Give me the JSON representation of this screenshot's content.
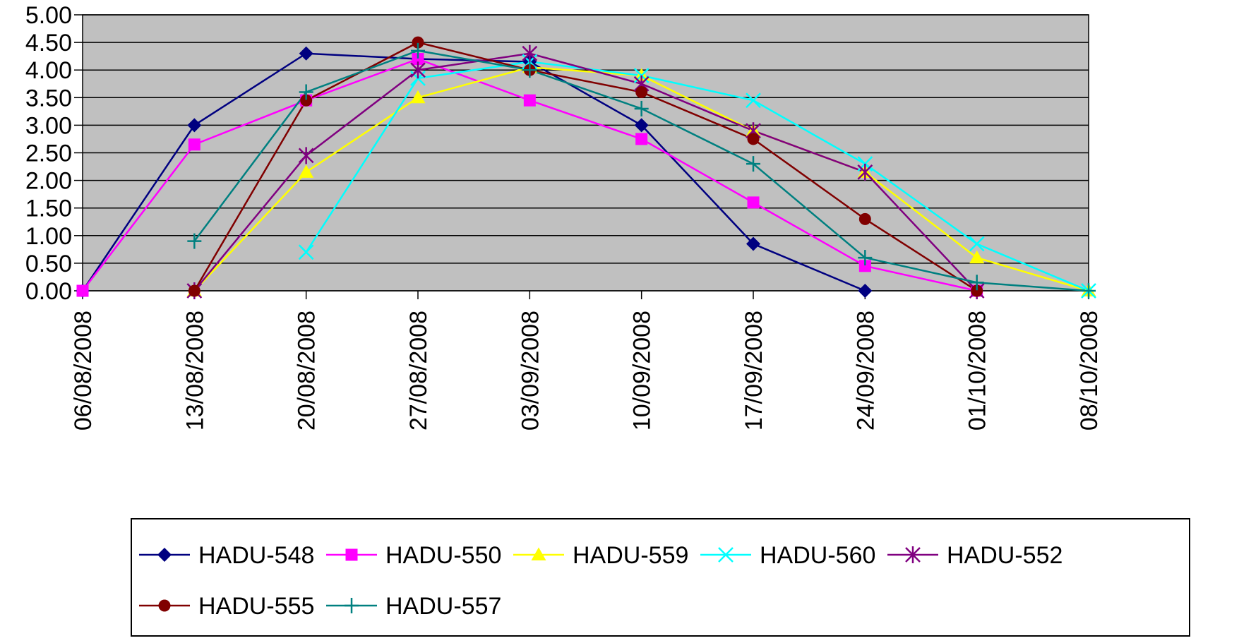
{
  "chart_data": {
    "type": "line",
    "title": "",
    "xlabel": "",
    "ylabel": "",
    "x": [
      "06/08/2008",
      "13/08/2008",
      "20/08/2008",
      "27/08/2008",
      "03/09/2008",
      "10/09/2008",
      "17/09/2008",
      "24/09/2008",
      "01/10/2008",
      "08/10/2008"
    ],
    "ylim": [
      0,
      5
    ],
    "yticks": [
      "0.00",
      "0.50",
      "1.00",
      "1.50",
      "2.00",
      "2.50",
      "3.00",
      "3.50",
      "4.00",
      "4.50",
      "5.00"
    ],
    "grid": "horizontal",
    "plot_background": "#c0c0c0",
    "legend_position": "bottom",
    "series": [
      {
        "name": "HADU-548",
        "color": "#000080",
        "marker": "diamond",
        "x": [
          "06/08/2008",
          "13/08/2008",
          "20/08/2008",
          "27/08/2008",
          "03/09/2008",
          "10/09/2008",
          "17/09/2008",
          "24/09/2008"
        ],
        "values": [
          0.0,
          3.0,
          4.3,
          4.2,
          4.15,
          3.0,
          0.85,
          0.0
        ]
      },
      {
        "name": "HADU-550",
        "color": "#ff00ff",
        "marker": "square",
        "x": [
          "06/08/2008",
          "13/08/2008",
          "20/08/2008",
          "27/08/2008",
          "03/09/2008",
          "10/09/2008",
          "17/09/2008",
          "24/09/2008",
          "01/10/2008"
        ],
        "values": [
          0.0,
          2.65,
          3.45,
          4.2,
          3.45,
          2.75,
          1.6,
          0.45,
          0.0
        ]
      },
      {
        "name": "HADU-559",
        "color": "#ffff00",
        "marker": "triangle",
        "x": [
          "13/08/2008",
          "20/08/2008",
          "27/08/2008",
          "03/09/2008",
          "10/09/2008",
          "17/09/2008",
          "24/09/2008",
          "01/10/2008",
          "08/10/2008"
        ],
        "values": [
          0.0,
          2.15,
          3.5,
          4.05,
          3.9,
          2.9,
          2.15,
          0.6,
          0.0
        ]
      },
      {
        "name": "HADU-560",
        "color": "#00ffff",
        "marker": "x",
        "x": [
          "20/08/2008",
          "27/08/2008",
          "03/09/2008",
          "10/09/2008",
          "17/09/2008",
          "24/09/2008",
          "01/10/2008",
          "08/10/2008"
        ],
        "values": [
          0.7,
          3.85,
          4.15,
          3.9,
          3.45,
          2.3,
          0.85,
          0.0
        ]
      },
      {
        "name": "HADU-552",
        "color": "#800080",
        "marker": "asterisk",
        "x": [
          "13/08/2008",
          "20/08/2008",
          "27/08/2008",
          "03/09/2008",
          "10/09/2008",
          "17/09/2008",
          "24/09/2008",
          "01/10/2008"
        ],
        "values": [
          0.0,
          2.45,
          4.0,
          4.3,
          3.75,
          2.9,
          2.15,
          0.0
        ]
      },
      {
        "name": "HADU-555",
        "color": "#800000",
        "marker": "circle",
        "x": [
          "13/08/2008",
          "20/08/2008",
          "27/08/2008",
          "03/09/2008",
          "10/09/2008",
          "17/09/2008",
          "24/09/2008",
          "01/10/2008"
        ],
        "values": [
          0.0,
          3.45,
          4.5,
          4.0,
          3.6,
          2.75,
          1.3,
          0.0
        ]
      },
      {
        "name": "HADU-557",
        "color": "#008080",
        "marker": "plus",
        "x": [
          "13/08/2008",
          "20/08/2008",
          "27/08/2008",
          "03/09/2008",
          "10/09/2008",
          "17/09/2008",
          "24/09/2008",
          "01/10/2008",
          "08/10/2008"
        ],
        "values": [
          0.9,
          3.6,
          4.35,
          4.0,
          3.3,
          2.3,
          0.6,
          0.15,
          0.0
        ]
      }
    ]
  }
}
